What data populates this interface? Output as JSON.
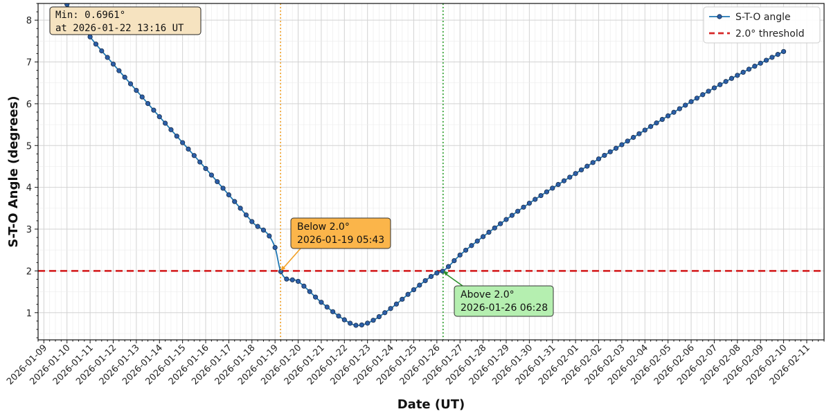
{
  "chart_data": {
    "type": "line",
    "title": "",
    "xlabel": "Date (UT)",
    "ylabel": "S-T-O Angle (degrees)",
    "x_type": "datetime",
    "xlim": [
      "2026-01-08T18:00",
      "2026-02-11T18:00"
    ],
    "ylim": [
      0.35,
      8.4
    ],
    "yticks": [
      1,
      2,
      3,
      4,
      5,
      6,
      7,
      8
    ],
    "xticks": [
      "2026-01-09",
      "2026-01-10",
      "2026-01-11",
      "2026-01-12",
      "2026-01-13",
      "2026-01-14",
      "2026-01-15",
      "2026-01-16",
      "2026-01-17",
      "2026-01-18",
      "2026-01-19",
      "2026-01-20",
      "2026-01-21",
      "2026-01-22",
      "2026-01-23",
      "2026-01-24",
      "2026-01-25",
      "2026-01-26",
      "2026-01-27",
      "2026-01-28",
      "2026-01-29",
      "2026-01-30",
      "2026-01-31",
      "2026-02-01",
      "2026-02-02",
      "2026-02-03",
      "2026-02-04",
      "2026-02-05",
      "2026-02-06",
      "2026-02-07",
      "2026-02-08",
      "2026-02-09",
      "2026-02-10",
      "2026-02-11"
    ],
    "grid": true,
    "legend_position": "top-right",
    "legend": [
      {
        "label": "S-T-O angle",
        "color": "#1f77b4",
        "style": "line-marker"
      },
      {
        "label": "2.0° threshold",
        "color": "#d62728",
        "style": "dashed"
      }
    ],
    "series": [
      {
        "name": "S-T-O angle",
        "color": "#1f77b4",
        "marker_color": "#2b5ea7",
        "points": [
          [
            "2026-01-10T00:00",
            8.38
          ],
          [
            "2026-01-11T00:00",
            7.6
          ],
          [
            "2026-01-12T00:00",
            6.95
          ],
          [
            "2026-01-13T00:00",
            6.32
          ],
          [
            "2026-01-14T00:00",
            5.69
          ],
          [
            "2026-01-15T00:00",
            5.07
          ],
          [
            "2026-01-16T00:00",
            4.45
          ],
          [
            "2026-01-17T00:00",
            3.82
          ],
          [
            "2026-01-18T00:00",
            3.18
          ],
          [
            "2026-01-19T00:00",
            2.56
          ],
          [
            "2026-01-19T05:43",
            2.0
          ],
          [
            "2026-01-20T00:00",
            1.75
          ],
          [
            "2026-01-21T00:00",
            1.25
          ],
          [
            "2026-01-22T00:00",
            0.83
          ],
          [
            "2026-01-22T13:16",
            0.6961
          ],
          [
            "2026-01-23T00:00",
            0.75
          ],
          [
            "2026-01-24T00:00",
            1.1
          ],
          [
            "2026-01-25T00:00",
            1.55
          ],
          [
            "2026-01-26T00:00",
            1.95
          ],
          [
            "2026-01-26T06:28",
            2.0
          ],
          [
            "2026-01-27T00:00",
            2.38
          ],
          [
            "2026-01-28T00:00",
            2.82
          ],
          [
            "2026-01-29T00:00",
            3.23
          ],
          [
            "2026-01-30T00:00",
            3.62
          ],
          [
            "2026-01-31T00:00",
            3.98
          ],
          [
            "2026-02-01T00:00",
            4.33
          ],
          [
            "2026-02-02T00:00",
            4.68
          ],
          [
            "2026-02-03T00:00",
            5.02
          ],
          [
            "2026-02-04T00:00",
            5.37
          ],
          [
            "2026-02-05T00:00",
            5.71
          ],
          [
            "2026-02-06T00:00",
            6.05
          ],
          [
            "2026-02-07T00:00",
            6.38
          ],
          [
            "2026-02-08T00:00",
            6.68
          ],
          [
            "2026-02-09T00:00",
            6.97
          ],
          [
            "2026-02-10T00:00",
            7.25
          ]
        ]
      }
    ],
    "threshold": {
      "value": 2.0,
      "color": "#d62728",
      "label": "2.0° threshold"
    },
    "vlines": [
      {
        "x": "2026-01-19T05:43",
        "color": "#f2a024"
      },
      {
        "x": "2026-01-26T06:28",
        "color": "#2ca02c"
      }
    ],
    "annotations": [
      {
        "name": "min",
        "lines": [
          "Min: 0.6961°",
          "at 2026-01-22 13:16 UT"
        ],
        "bg": "#f6e3c0",
        "border": "#222222",
        "mono": true
      },
      {
        "name": "below",
        "lines": [
          "Below 2.0°",
          "2026-01-19 05:43"
        ],
        "bg": "#fbb54a",
        "border": "#333333",
        "arrow_color": "#f2a024",
        "target": [
          "2026-01-19T05:43",
          2.0
        ]
      },
      {
        "name": "above",
        "lines": [
          "Above 2.0°",
          "2026-01-26 06:28"
        ],
        "bg": "#b5efb0",
        "border": "#333333",
        "arrow_color": "#2a8f2a",
        "target": [
          "2026-01-26T06:28",
          2.0
        ]
      }
    ]
  }
}
